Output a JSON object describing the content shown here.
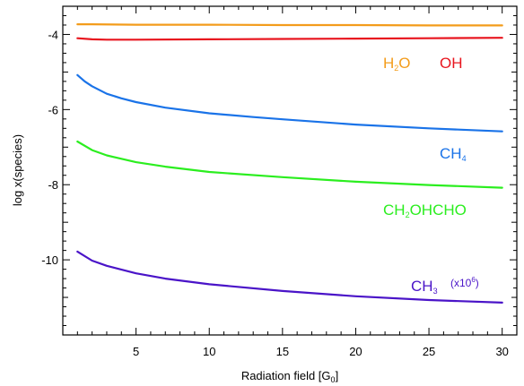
{
  "chart_data": {
    "type": "line",
    "xlabel": "Radiation field [G",
    "xlabel_sub": "0",
    "xlabel_end": "]",
    "ylabel": "log x(species)",
    "xlim": [
      0,
      31
    ],
    "ylim": [
      -12.0,
      -3.25
    ],
    "xticks": [
      5,
      10,
      15,
      20,
      25,
      30
    ],
    "yticks": [
      -4,
      -6,
      -8,
      -10
    ],
    "xtick_labels": [
      "5",
      "10",
      "15",
      "20",
      "25",
      "30"
    ],
    "ytick_labels": [
      "-4",
      "-6",
      "-8",
      "-10"
    ],
    "grid": false,
    "series": [
      {
        "id": "h2o",
        "label_main": "H",
        "label_sub": "2",
        "label_rest": "O",
        "label_note": "",
        "color": "#f39c1b",
        "x": [
          1,
          2,
          5,
          10,
          15,
          20,
          25,
          30
        ],
        "y": [
          -3.73,
          -3.73,
          -3.74,
          -3.74,
          -3.75,
          -3.75,
          -3.76,
          -3.76
        ]
      },
      {
        "id": "oh",
        "label_main": "OH",
        "label_sub": "",
        "label_rest": "",
        "label_note": "",
        "color": "#e8151e",
        "x": [
          1,
          2,
          3,
          5,
          10,
          15,
          20,
          25,
          30
        ],
        "y": [
          -4.1,
          -4.13,
          -4.14,
          -4.14,
          -4.13,
          -4.12,
          -4.11,
          -4.1,
          -4.09
        ]
      },
      {
        "id": "ch4",
        "label_main": "CH",
        "label_sub": "4",
        "label_rest": "",
        "label_note": "",
        "color": "#1a73e8",
        "x": [
          1,
          1.5,
          2,
          3,
          4,
          5,
          7,
          10,
          13,
          15,
          20,
          25,
          30
        ],
        "y": [
          -5.08,
          -5.25,
          -5.38,
          -5.58,
          -5.7,
          -5.8,
          -5.95,
          -6.1,
          -6.2,
          -6.26,
          -6.4,
          -6.5,
          -6.58
        ]
      },
      {
        "id": "ch2ohcho",
        "label_main": "CH",
        "label_sub": "2",
        "label_rest": "OHCHO",
        "label_note": "",
        "color": "#2bee1f",
        "x": [
          1,
          2,
          3,
          5,
          7,
          10,
          15,
          20,
          25,
          30
        ],
        "y": [
          -6.85,
          -7.08,
          -7.22,
          -7.4,
          -7.52,
          -7.66,
          -7.8,
          -7.92,
          -8.01,
          -8.08
        ]
      },
      {
        "id": "ch3",
        "label_main": "CH",
        "label_sub": "3",
        "label_rest": "",
        "label_note": "(x10",
        "label_note_sup": "6",
        "label_note_end": ")",
        "color": "#4a14c8",
        "x": [
          1,
          2,
          3,
          5,
          7,
          10,
          15,
          20,
          25,
          30
        ],
        "y": [
          -9.78,
          -10.02,
          -10.16,
          -10.36,
          -10.5,
          -10.65,
          -10.83,
          -10.97,
          -11.07,
          -11.14
        ]
      }
    ]
  }
}
